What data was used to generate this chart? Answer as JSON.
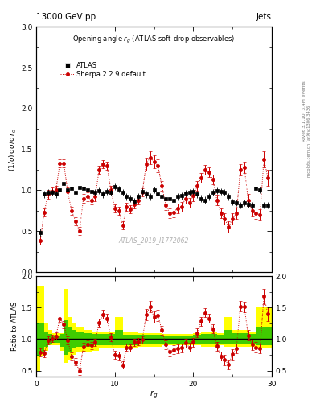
{
  "title_top": "13000 GeV pp",
  "title_right_top": "Jets",
  "plot_title": "Opening angle r_g (ATLAS soft-drop observables)",
  "ylabel_main": "(1/σ) dσ/d r_g",
  "ylabel_ratio": "Ratio to ATLAS",
  "xlabel": "r_g",
  "watermark": "ATLAS_2019_I1772062",
  "rivet_text": "Rivet 3.1.10, 3.4M events",
  "arxiv_text": "mcplots.cern.ch [arXiv:1306.3436]",
  "xlim": [
    0,
    30
  ],
  "ylim_main": [
    0,
    3
  ],
  "ylim_ratio": [
    0.4,
    2.0
  ],
  "atlas_x": [
    0.5,
    1.0,
    1.5,
    2.0,
    2.5,
    3.0,
    3.5,
    4.0,
    4.5,
    5.0,
    5.5,
    6.0,
    6.5,
    7.0,
    7.5,
    8.0,
    8.5,
    9.0,
    9.5,
    10.0,
    10.5,
    11.0,
    11.5,
    12.0,
    12.5,
    13.0,
    13.5,
    14.0,
    14.5,
    15.0,
    15.5,
    16.0,
    16.5,
    17.0,
    17.5,
    18.0,
    18.5,
    19.0,
    19.5,
    20.0,
    20.5,
    21.0,
    21.5,
    22.0,
    22.5,
    23.0,
    23.5,
    24.0,
    24.5,
    25.0,
    25.5,
    26.0,
    26.5,
    27.0,
    27.5,
    28.0,
    28.5,
    29.0,
    29.5
  ],
  "atlas_y": [
    0.48,
    0.95,
    0.97,
    0.97,
    0.95,
    1.0,
    1.08,
    1.0,
    1.02,
    0.97,
    1.03,
    1.02,
    1.0,
    0.98,
    0.97,
    0.99,
    0.95,
    0.98,
    0.97,
    1.04,
    1.01,
    0.97,
    0.92,
    0.9,
    0.87,
    0.92,
    0.98,
    0.95,
    0.92,
    1.0,
    0.95,
    0.92,
    0.9,
    0.9,
    0.88,
    0.92,
    0.93,
    0.96,
    0.97,
    0.98,
    0.95,
    0.9,
    0.88,
    0.92,
    0.97,
    0.99,
    0.98,
    0.97,
    0.92,
    0.86,
    0.85,
    0.82,
    0.85,
    0.83,
    0.82,
    1.02,
    1.0,
    0.82,
    0.82
  ],
  "atlas_yerr": [
    0.05,
    0.04,
    0.04,
    0.04,
    0.04,
    0.04,
    0.04,
    0.04,
    0.04,
    0.04,
    0.04,
    0.04,
    0.04,
    0.04,
    0.04,
    0.04,
    0.04,
    0.04,
    0.04,
    0.04,
    0.04,
    0.04,
    0.04,
    0.04,
    0.04,
    0.04,
    0.04,
    0.04,
    0.04,
    0.04,
    0.04,
    0.04,
    0.04,
    0.04,
    0.04,
    0.04,
    0.04,
    0.04,
    0.04,
    0.04,
    0.04,
    0.04,
    0.04,
    0.04,
    0.04,
    0.04,
    0.04,
    0.04,
    0.04,
    0.04,
    0.04,
    0.04,
    0.04,
    0.04,
    0.04,
    0.04,
    0.04,
    0.04,
    0.04
  ],
  "sherpa_x": [
    0.5,
    1.0,
    1.5,
    2.0,
    2.5,
    3.0,
    3.5,
    4.0,
    4.5,
    5.0,
    5.5,
    6.0,
    6.5,
    7.0,
    7.5,
    8.0,
    8.5,
    9.0,
    9.5,
    10.0,
    10.5,
    11.0,
    11.5,
    12.0,
    12.5,
    13.0,
    13.5,
    14.0,
    14.5,
    15.0,
    15.5,
    16.0,
    16.5,
    17.0,
    17.5,
    18.0,
    18.5,
    19.0,
    19.5,
    20.0,
    20.5,
    21.0,
    21.5,
    22.0,
    22.5,
    23.0,
    23.5,
    24.0,
    24.5,
    25.0,
    25.5,
    26.0,
    26.5,
    27.0,
    27.5,
    28.0,
    28.5,
    29.0,
    29.5
  ],
  "sherpa_y": [
    0.38,
    0.73,
    0.95,
    0.98,
    1.0,
    1.33,
    1.33,
    0.98,
    0.75,
    0.62,
    0.5,
    0.9,
    0.92,
    0.88,
    0.92,
    1.25,
    1.32,
    1.3,
    1.0,
    0.78,
    0.75,
    0.57,
    0.8,
    0.77,
    0.83,
    0.88,
    0.97,
    1.32,
    1.4,
    1.35,
    1.3,
    1.05,
    0.82,
    0.72,
    0.73,
    0.78,
    0.8,
    0.9,
    0.85,
    0.93,
    1.05,
    1.15,
    1.25,
    1.22,
    1.13,
    0.88,
    0.72,
    0.65,
    0.55,
    0.65,
    0.72,
    1.25,
    1.28,
    0.88,
    0.75,
    0.72,
    0.7,
    1.38,
    1.15
  ],
  "sherpa_yerr": [
    0.05,
    0.05,
    0.05,
    0.05,
    0.05,
    0.05,
    0.05,
    0.05,
    0.05,
    0.05,
    0.05,
    0.05,
    0.05,
    0.05,
    0.05,
    0.05,
    0.05,
    0.05,
    0.05,
    0.05,
    0.05,
    0.05,
    0.05,
    0.05,
    0.05,
    0.05,
    0.05,
    0.08,
    0.08,
    0.08,
    0.08,
    0.06,
    0.06,
    0.06,
    0.06,
    0.06,
    0.06,
    0.06,
    0.06,
    0.06,
    0.06,
    0.06,
    0.06,
    0.06,
    0.06,
    0.06,
    0.06,
    0.07,
    0.07,
    0.07,
    0.07,
    0.07,
    0.07,
    0.07,
    0.07,
    0.07,
    0.07,
    0.1,
    0.1
  ],
  "ratio_x": [
    0.5,
    1.0,
    1.5,
    2.0,
    2.5,
    3.0,
    3.5,
    4.0,
    4.5,
    5.0,
    5.5,
    6.0,
    6.5,
    7.0,
    7.5,
    8.0,
    8.5,
    9.0,
    9.5,
    10.0,
    10.5,
    11.0,
    11.5,
    12.0,
    12.5,
    13.0,
    13.5,
    14.0,
    14.5,
    15.0,
    15.5,
    16.0,
    16.5,
    17.0,
    17.5,
    18.0,
    18.5,
    19.0,
    19.5,
    20.0,
    20.5,
    21.0,
    21.5,
    22.0,
    22.5,
    23.0,
    23.5,
    24.0,
    24.5,
    25.0,
    25.5,
    26.0,
    26.5,
    27.0,
    27.5,
    28.0,
    28.5,
    29.0,
    29.5
  ],
  "ratio_y": [
    0.79,
    0.77,
    0.98,
    1.01,
    1.05,
    1.33,
    1.23,
    0.98,
    0.73,
    0.64,
    0.49,
    0.88,
    0.92,
    0.9,
    0.95,
    1.26,
    1.39,
    1.33,
    1.03,
    0.75,
    0.74,
    0.59,
    0.87,
    0.86,
    0.95,
    0.96,
    0.99,
    1.39,
    1.52,
    1.35,
    1.37,
    1.14,
    0.91,
    0.8,
    0.83,
    0.85,
    0.86,
    0.94,
    0.87,
    0.95,
    1.1,
    1.28,
    1.42,
    1.33,
    1.16,
    0.89,
    0.73,
    0.67,
    0.6,
    0.76,
    0.85,
    1.52,
    1.51,
    1.06,
    0.91,
    0.87,
    0.85,
    1.68,
    1.4
  ],
  "ratio_yerr": [
    0.06,
    0.06,
    0.06,
    0.06,
    0.06,
    0.06,
    0.06,
    0.06,
    0.06,
    0.06,
    0.06,
    0.06,
    0.06,
    0.06,
    0.06,
    0.06,
    0.07,
    0.07,
    0.06,
    0.06,
    0.06,
    0.06,
    0.06,
    0.06,
    0.06,
    0.06,
    0.06,
    0.09,
    0.09,
    0.09,
    0.09,
    0.07,
    0.07,
    0.07,
    0.07,
    0.07,
    0.07,
    0.07,
    0.07,
    0.07,
    0.07,
    0.07,
    0.07,
    0.07,
    0.07,
    0.07,
    0.07,
    0.08,
    0.08,
    0.08,
    0.08,
    0.08,
    0.08,
    0.08,
    0.08,
    0.08,
    0.08,
    0.12,
    0.12
  ],
  "band_yellow_x": [
    0,
    0.5,
    1.0,
    1.5,
    2.0,
    2.5,
    3.0,
    3.5,
    4.0,
    4.5,
    5.0,
    6.0,
    7.0,
    8.0,
    9.0,
    10.0,
    11.0,
    12.0,
    13.0,
    14.0,
    15.0,
    16.0,
    17.0,
    18.0,
    19.0,
    20.0,
    21.0,
    22.0,
    23.0,
    24.0,
    25.0,
    26.0,
    27.0,
    28.0,
    29.0,
    30.0
  ],
  "band_yellow_low": [
    0.5,
    0.72,
    0.82,
    0.9,
    0.9,
    0.9,
    0.82,
    0.62,
    0.68,
    0.75,
    0.8,
    0.8,
    0.82,
    0.85,
    0.85,
    0.85,
    0.85,
    0.85,
    0.88,
    0.88,
    0.88,
    0.9,
    0.9,
    0.9,
    0.9,
    0.9,
    0.88,
    0.88,
    0.9,
    0.88,
    0.88,
    0.88,
    0.88,
    0.85,
    0.85,
    0.85
  ],
  "band_yellow_high": [
    1.85,
    1.85,
    1.25,
    1.15,
    1.1,
    1.1,
    1.1,
    1.8,
    1.35,
    1.25,
    1.2,
    1.15,
    1.12,
    1.12,
    1.12,
    1.35,
    1.12,
    1.12,
    1.1,
    1.1,
    1.1,
    1.08,
    1.08,
    1.08,
    1.08,
    1.1,
    1.12,
    1.12,
    1.1,
    1.35,
    1.15,
    1.15,
    1.12,
    1.5,
    1.5,
    1.5
  ],
  "band_green_x": [
    0,
    0.5,
    1.0,
    1.5,
    2.0,
    2.5,
    3.0,
    3.5,
    4.0,
    4.5,
    5.0,
    6.0,
    7.0,
    8.0,
    9.0,
    10.0,
    11.0,
    12.0,
    13.0,
    14.0,
    15.0,
    16.0,
    17.0,
    18.0,
    19.0,
    20.0,
    21.0,
    22.0,
    23.0,
    24.0,
    25.0,
    26.0,
    27.0,
    28.0,
    29.0,
    30.0
  ],
  "band_green_low": [
    0.72,
    0.8,
    0.88,
    0.92,
    0.94,
    0.94,
    0.88,
    0.75,
    0.8,
    0.85,
    0.88,
    0.88,
    0.9,
    0.9,
    0.9,
    0.9,
    0.9,
    0.9,
    0.92,
    0.92,
    0.92,
    0.93,
    0.93,
    0.93,
    0.93,
    0.93,
    0.92,
    0.92,
    0.93,
    0.92,
    0.92,
    0.92,
    0.92,
    0.9,
    0.9,
    0.9
  ],
  "band_green_high": [
    1.25,
    1.25,
    1.12,
    1.08,
    1.06,
    1.06,
    1.08,
    1.3,
    1.2,
    1.15,
    1.12,
    1.1,
    1.08,
    1.08,
    1.08,
    1.15,
    1.07,
    1.07,
    1.07,
    1.07,
    1.07,
    1.06,
    1.06,
    1.06,
    1.06,
    1.07,
    1.08,
    1.08,
    1.07,
    1.15,
    1.1,
    1.1,
    1.08,
    1.2,
    1.2,
    1.2
  ],
  "atlas_color": "#000000",
  "sherpa_color": "#cc0000",
  "band_yellow_color": "#ffff00",
  "band_green_color": "#00bb00",
  "background_color": "#ffffff"
}
